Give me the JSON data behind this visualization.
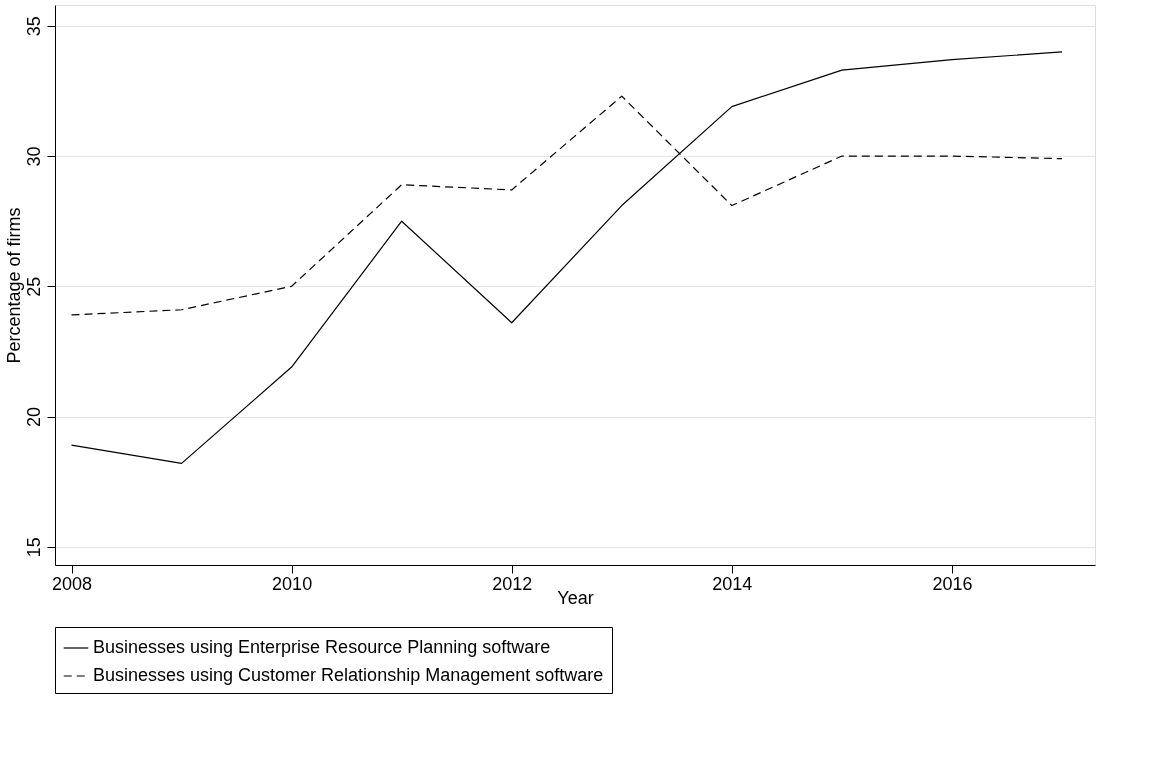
{
  "chart_data": {
    "type": "line",
    "xlabel": "Year",
    "ylabel": "Percentage of firms",
    "x": [
      2008,
      2009,
      2010,
      2011,
      2012,
      2013,
      2014,
      2015,
      2016,
      2017
    ],
    "xlim": [
      2007.85,
      2017.3
    ],
    "xticks": [
      2008,
      2010,
      2012,
      2014,
      2016
    ],
    "ylim": [
      14.3,
      35.8
    ],
    "yticks": [
      15,
      20,
      25,
      30,
      35
    ],
    "grid": "y",
    "legend": "bottom",
    "marker": "none",
    "series": [
      {
        "name": "Businesses using Enterprise Resource Planning software",
        "color": "#000000",
        "line_style": "solid",
        "values": [
          18.9,
          18.2,
          21.9,
          27.5,
          23.6,
          28.1,
          31.9,
          33.3,
          33.7,
          34.0
        ]
      },
      {
        "name": "Businesses using Customer Relationship Management software",
        "color": "#000000",
        "line_style": "dashed",
        "values": [
          23.9,
          24.1,
          25.0,
          28.9,
          28.7,
          32.3,
          28.1,
          30.0,
          30.0,
          29.9
        ]
      }
    ]
  }
}
